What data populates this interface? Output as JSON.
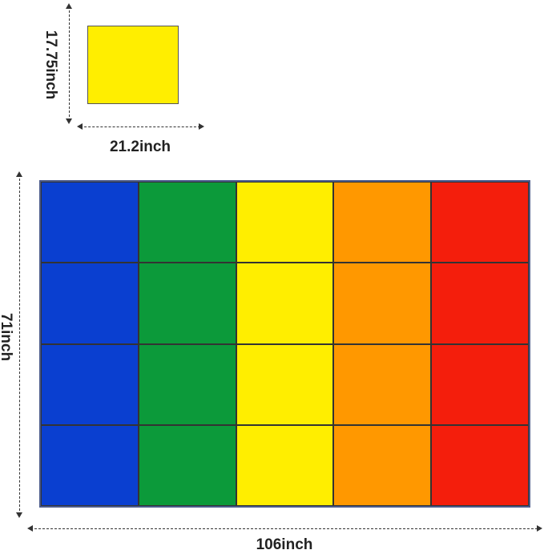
{
  "swatch": {
    "color": "#ffee00",
    "height_label": "17.75inch",
    "width_label": "21.2inch"
  },
  "rug": {
    "height_label": "71inch",
    "width_label": "106inch",
    "columns": 5,
    "rows": 4,
    "column_colors": [
      "#0a3fd0",
      "#0c9a3a",
      "#ffee00",
      "#ff9800",
      "#f41e0c"
    ]
  }
}
